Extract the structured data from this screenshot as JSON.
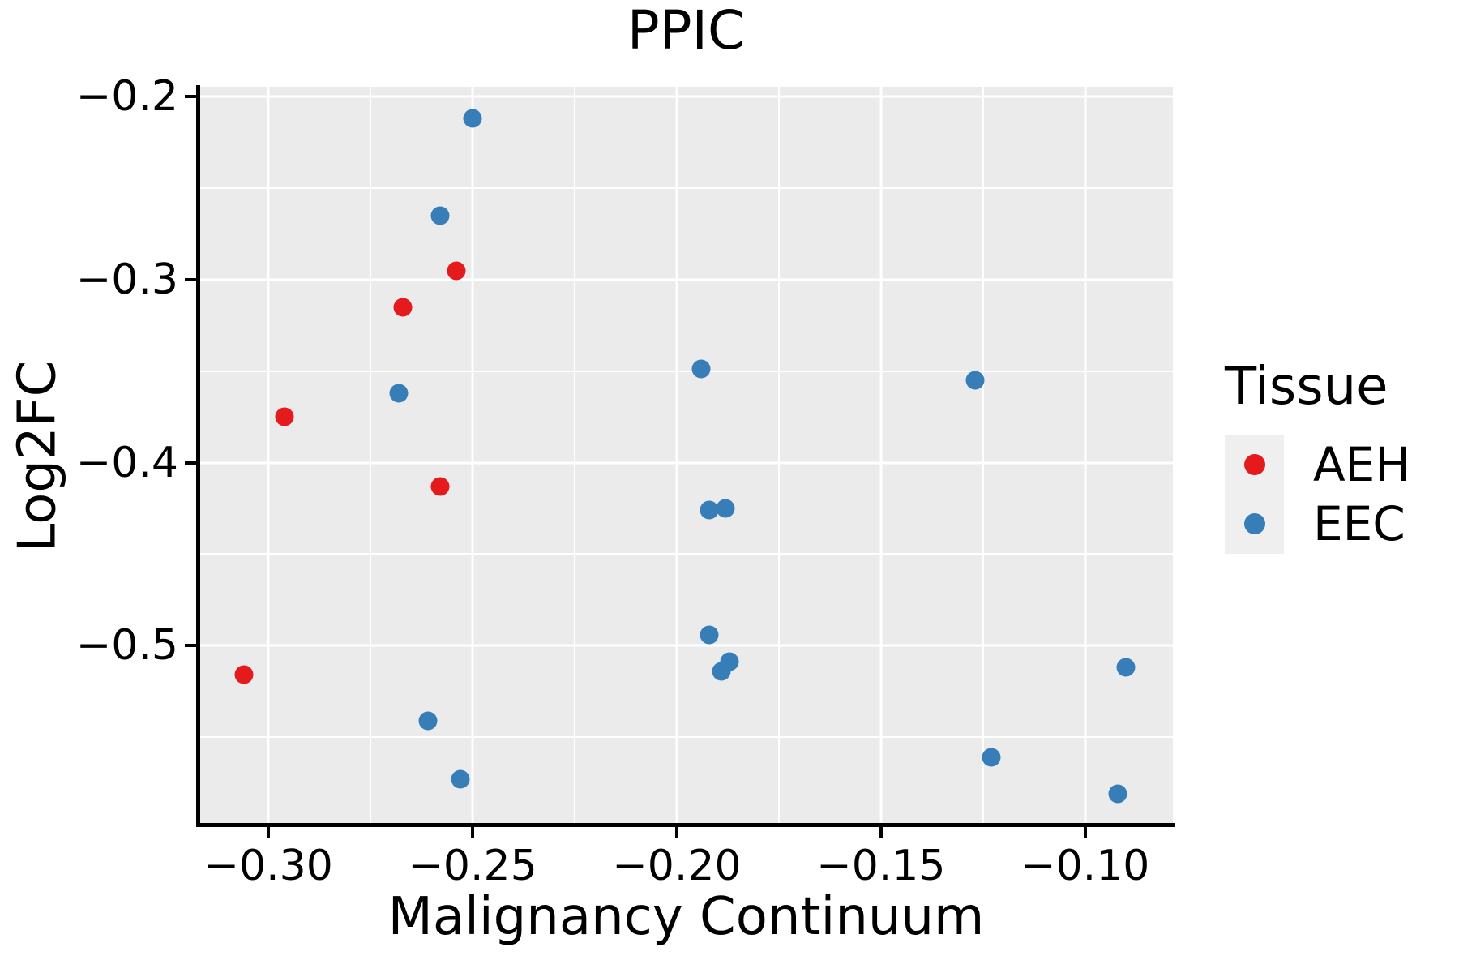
{
  "title": "PPIC",
  "colors": {
    "background": "#FFFFFF",
    "panel_background": "#EBEBEB",
    "gridline": "#FFFFFF",
    "axis_line": "#000000",
    "text": "#000000",
    "legend_key_background": "#EFEFEF",
    "aeh": "#E41A1C",
    "eec": "#377EB8"
  },
  "axes": {
    "x": {
      "title": "Malignancy Continuum",
      "tick_values": [
        -0.3,
        -0.25,
        -0.2,
        -0.15,
        -0.1
      ],
      "tick_labels": [
        "−0.30",
        "−0.25",
        "−0.20",
        "−0.15",
        "−0.10"
      ]
    },
    "y": {
      "title": "Log2FC",
      "tick_values": [
        -0.2,
        -0.3,
        -0.4,
        -0.5
      ],
      "tick_labels": [
        "−0.2",
        "−0.3",
        "−0.4",
        "−0.5"
      ]
    }
  },
  "legend": {
    "title": "Tissue",
    "entries": [
      {
        "label": "AEH",
        "color": "#E41A1C"
      },
      {
        "label": "EEC",
        "color": "#377EB8"
      }
    ]
  },
  "chart_data": {
    "type": "scatter",
    "title": "PPIC",
    "xlabel": "Malignancy Continuum",
    "ylabel": "Log2FC",
    "xlim": [
      -0.3169,
      -0.0785
    ],
    "ylim": [
      -0.5983,
      -0.1946
    ],
    "grid": true,
    "legend_position": "right",
    "x_major_gridlines": [
      -0.3,
      -0.25,
      -0.2,
      -0.15,
      -0.1
    ],
    "x_minor_gridlines": [
      -0.275,
      -0.225,
      -0.175,
      -0.125
    ],
    "y_major_gridlines": [
      -0.2,
      -0.3,
      -0.4,
      -0.5
    ],
    "y_minor_gridlines": [
      -0.25,
      -0.35,
      -0.45,
      -0.55
    ],
    "series": [
      {
        "name": "AEH",
        "color": "#E41A1C",
        "points": [
          [
            -0.254,
            -0.295
          ],
          [
            -0.267,
            -0.315
          ],
          [
            -0.296,
            -0.375
          ],
          [
            -0.258,
            -0.413
          ],
          [
            -0.306,
            -0.516
          ]
        ]
      },
      {
        "name": "EEC",
        "color": "#377EB8",
        "points": [
          [
            -0.25,
            -0.212
          ],
          [
            -0.258,
            -0.265
          ],
          [
            -0.268,
            -0.362
          ],
          [
            -0.194,
            -0.349
          ],
          [
            -0.127,
            -0.355
          ],
          [
            -0.192,
            -0.426
          ],
          [
            -0.188,
            -0.425
          ],
          [
            -0.192,
            -0.494
          ],
          [
            -0.189,
            -0.514
          ],
          [
            -0.187,
            -0.509
          ],
          [
            -0.261,
            -0.541
          ],
          [
            -0.253,
            -0.573
          ],
          [
            -0.123,
            -0.561
          ],
          [
            -0.09,
            -0.512
          ],
          [
            -0.092,
            -0.581
          ]
        ]
      }
    ]
  }
}
